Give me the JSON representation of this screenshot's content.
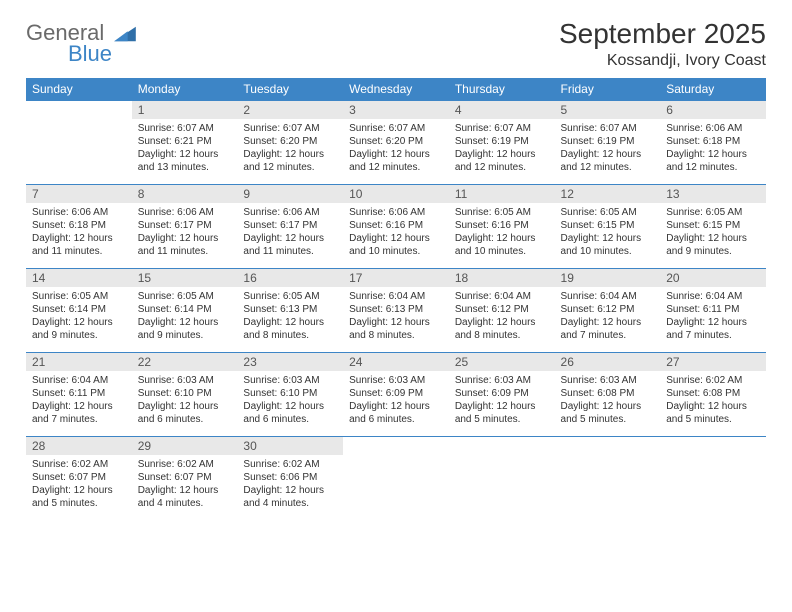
{
  "logo": {
    "text1": "General",
    "text2": "Blue",
    "color1": "#6a6a6a",
    "color2": "#3d85c6",
    "tri_color": "#2f6fa8"
  },
  "title": "September 2025",
  "location": "Kossandji, Ivory Coast",
  "header_bg": "#3d85c6",
  "header_fg": "#ffffff",
  "daynum_bg": "#e8e8e8",
  "border_color": "#3d85c6",
  "weekdays": [
    "Sunday",
    "Monday",
    "Tuesday",
    "Wednesday",
    "Thursday",
    "Friday",
    "Saturday"
  ],
  "weeks": [
    [
      {
        "n": "",
        "sr": "",
        "ss": "",
        "dl": "",
        "empty": true
      },
      {
        "n": "1",
        "sr": "Sunrise: 6:07 AM",
        "ss": "Sunset: 6:21 PM",
        "dl": "Daylight: 12 hours and 13 minutes."
      },
      {
        "n": "2",
        "sr": "Sunrise: 6:07 AM",
        "ss": "Sunset: 6:20 PM",
        "dl": "Daylight: 12 hours and 12 minutes."
      },
      {
        "n": "3",
        "sr": "Sunrise: 6:07 AM",
        "ss": "Sunset: 6:20 PM",
        "dl": "Daylight: 12 hours and 12 minutes."
      },
      {
        "n": "4",
        "sr": "Sunrise: 6:07 AM",
        "ss": "Sunset: 6:19 PM",
        "dl": "Daylight: 12 hours and 12 minutes."
      },
      {
        "n": "5",
        "sr": "Sunrise: 6:07 AM",
        "ss": "Sunset: 6:19 PM",
        "dl": "Daylight: 12 hours and 12 minutes."
      },
      {
        "n": "6",
        "sr": "Sunrise: 6:06 AM",
        "ss": "Sunset: 6:18 PM",
        "dl": "Daylight: 12 hours and 12 minutes."
      }
    ],
    [
      {
        "n": "7",
        "sr": "Sunrise: 6:06 AM",
        "ss": "Sunset: 6:18 PM",
        "dl": "Daylight: 12 hours and 11 minutes."
      },
      {
        "n": "8",
        "sr": "Sunrise: 6:06 AM",
        "ss": "Sunset: 6:17 PM",
        "dl": "Daylight: 12 hours and 11 minutes."
      },
      {
        "n": "9",
        "sr": "Sunrise: 6:06 AM",
        "ss": "Sunset: 6:17 PM",
        "dl": "Daylight: 12 hours and 11 minutes."
      },
      {
        "n": "10",
        "sr": "Sunrise: 6:06 AM",
        "ss": "Sunset: 6:16 PM",
        "dl": "Daylight: 12 hours and 10 minutes."
      },
      {
        "n": "11",
        "sr": "Sunrise: 6:05 AM",
        "ss": "Sunset: 6:16 PM",
        "dl": "Daylight: 12 hours and 10 minutes."
      },
      {
        "n": "12",
        "sr": "Sunrise: 6:05 AM",
        "ss": "Sunset: 6:15 PM",
        "dl": "Daylight: 12 hours and 10 minutes."
      },
      {
        "n": "13",
        "sr": "Sunrise: 6:05 AM",
        "ss": "Sunset: 6:15 PM",
        "dl": "Daylight: 12 hours and 9 minutes."
      }
    ],
    [
      {
        "n": "14",
        "sr": "Sunrise: 6:05 AM",
        "ss": "Sunset: 6:14 PM",
        "dl": "Daylight: 12 hours and 9 minutes."
      },
      {
        "n": "15",
        "sr": "Sunrise: 6:05 AM",
        "ss": "Sunset: 6:14 PM",
        "dl": "Daylight: 12 hours and 9 minutes."
      },
      {
        "n": "16",
        "sr": "Sunrise: 6:05 AM",
        "ss": "Sunset: 6:13 PM",
        "dl": "Daylight: 12 hours and 8 minutes."
      },
      {
        "n": "17",
        "sr": "Sunrise: 6:04 AM",
        "ss": "Sunset: 6:13 PM",
        "dl": "Daylight: 12 hours and 8 minutes."
      },
      {
        "n": "18",
        "sr": "Sunrise: 6:04 AM",
        "ss": "Sunset: 6:12 PM",
        "dl": "Daylight: 12 hours and 8 minutes."
      },
      {
        "n": "19",
        "sr": "Sunrise: 6:04 AM",
        "ss": "Sunset: 6:12 PM",
        "dl": "Daylight: 12 hours and 7 minutes."
      },
      {
        "n": "20",
        "sr": "Sunrise: 6:04 AM",
        "ss": "Sunset: 6:11 PM",
        "dl": "Daylight: 12 hours and 7 minutes."
      }
    ],
    [
      {
        "n": "21",
        "sr": "Sunrise: 6:04 AM",
        "ss": "Sunset: 6:11 PM",
        "dl": "Daylight: 12 hours and 7 minutes."
      },
      {
        "n": "22",
        "sr": "Sunrise: 6:03 AM",
        "ss": "Sunset: 6:10 PM",
        "dl": "Daylight: 12 hours and 6 minutes."
      },
      {
        "n": "23",
        "sr": "Sunrise: 6:03 AM",
        "ss": "Sunset: 6:10 PM",
        "dl": "Daylight: 12 hours and 6 minutes."
      },
      {
        "n": "24",
        "sr": "Sunrise: 6:03 AM",
        "ss": "Sunset: 6:09 PM",
        "dl": "Daylight: 12 hours and 6 minutes."
      },
      {
        "n": "25",
        "sr": "Sunrise: 6:03 AM",
        "ss": "Sunset: 6:09 PM",
        "dl": "Daylight: 12 hours and 5 minutes."
      },
      {
        "n": "26",
        "sr": "Sunrise: 6:03 AM",
        "ss": "Sunset: 6:08 PM",
        "dl": "Daylight: 12 hours and 5 minutes."
      },
      {
        "n": "27",
        "sr": "Sunrise: 6:02 AM",
        "ss": "Sunset: 6:08 PM",
        "dl": "Daylight: 12 hours and 5 minutes."
      }
    ],
    [
      {
        "n": "28",
        "sr": "Sunrise: 6:02 AM",
        "ss": "Sunset: 6:07 PM",
        "dl": "Daylight: 12 hours and 5 minutes."
      },
      {
        "n": "29",
        "sr": "Sunrise: 6:02 AM",
        "ss": "Sunset: 6:07 PM",
        "dl": "Daylight: 12 hours and 4 minutes."
      },
      {
        "n": "30",
        "sr": "Sunrise: 6:02 AM",
        "ss": "Sunset: 6:06 PM",
        "dl": "Daylight: 12 hours and 4 minutes."
      },
      {
        "n": "",
        "sr": "",
        "ss": "",
        "dl": "",
        "empty": true
      },
      {
        "n": "",
        "sr": "",
        "ss": "",
        "dl": "",
        "empty": true
      },
      {
        "n": "",
        "sr": "",
        "ss": "",
        "dl": "",
        "empty": true
      },
      {
        "n": "",
        "sr": "",
        "ss": "",
        "dl": "",
        "empty": true
      }
    ]
  ]
}
